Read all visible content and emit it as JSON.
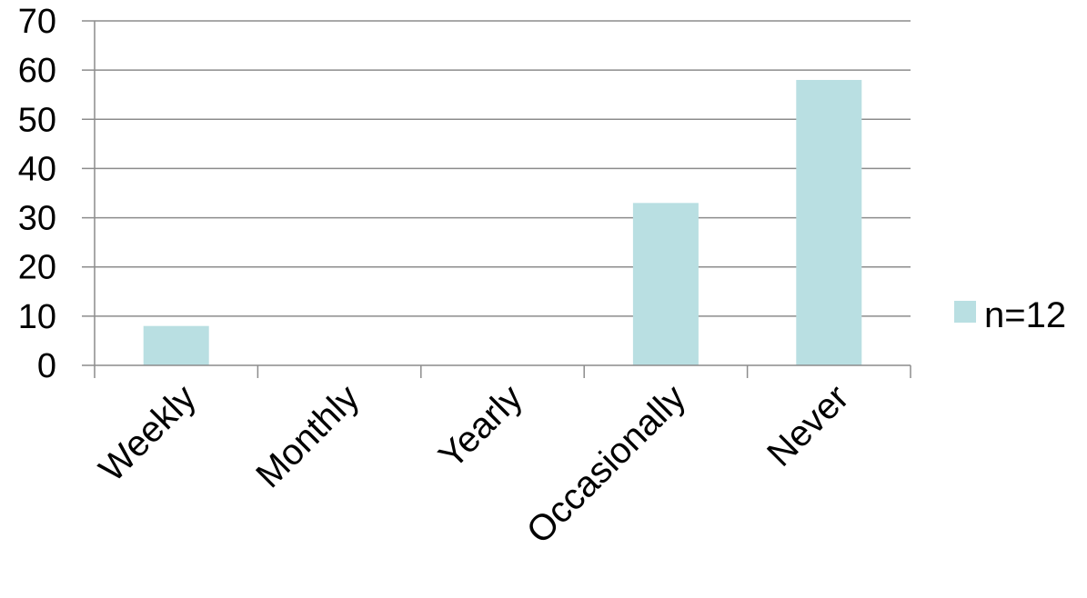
{
  "chart_data": {
    "type": "bar",
    "categories": [
      "Weekly",
      "Monthly",
      "Yearly",
      "Occasionally",
      "Never"
    ],
    "series": [
      {
        "name": "n=12",
        "values": [
          8,
          0,
          0,
          33,
          58
        ]
      }
    ],
    "yticks": [
      "0",
      "10",
      "20",
      "30",
      "40",
      "50",
      "60",
      "70"
    ],
    "ylim": [
      0,
      70
    ],
    "grid": true,
    "legend": "right",
    "colors": {
      "bar": "#b9dfe2",
      "grid": "#8c8c8c",
      "axis": "#8c8c8c"
    }
  }
}
